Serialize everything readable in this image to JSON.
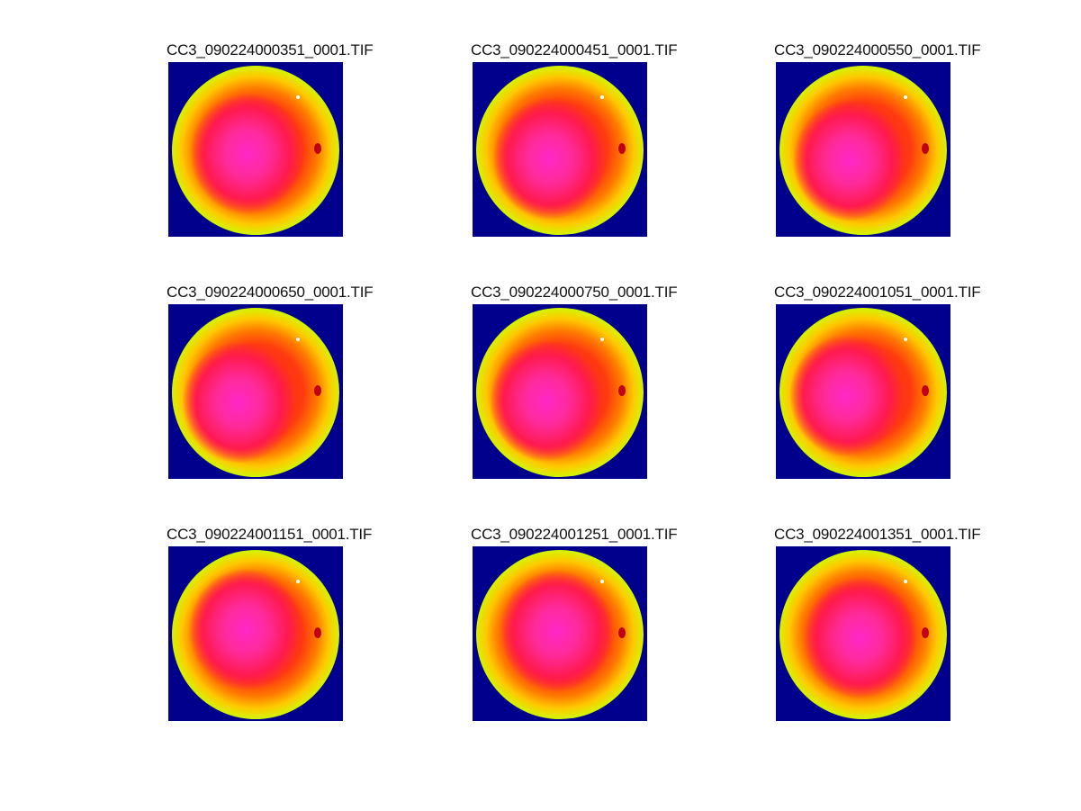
{
  "figure": {
    "panels": [
      {
        "title": "CC3_090224000351_0001.TIF"
      },
      {
        "title": "CC3_090224000451_0001.TIF"
      },
      {
        "title": "CC3_090224000550_0001.TIF"
      },
      {
        "title": "CC3_090224000650_0001.TIF"
      },
      {
        "title": "CC3_090224000750_0001.TIF"
      },
      {
        "title": "CC3_090224001051_0001.TIF"
      },
      {
        "title": "CC3_090224001151_0001.TIF"
      },
      {
        "title": "CC3_090224001251_0001.TIF"
      },
      {
        "title": "CC3_090224001351_0001.TIF"
      }
    ],
    "colors": {
      "background": "#00008c",
      "center": "#ff28c8"
    }
  }
}
